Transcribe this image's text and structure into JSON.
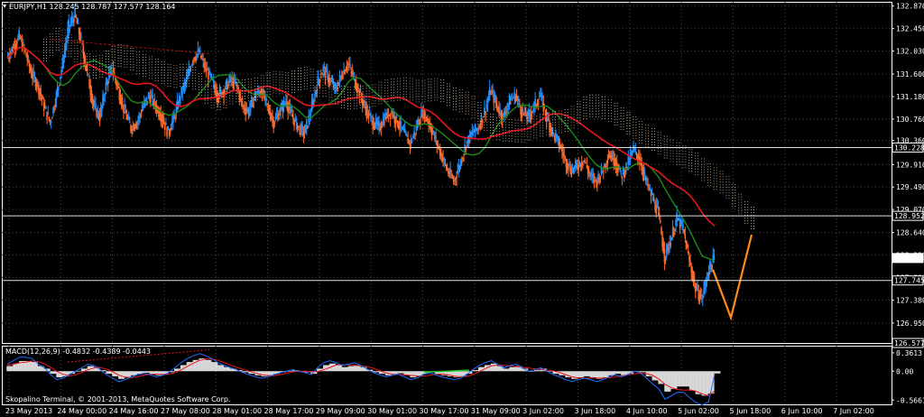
{
  "chart_data": [
    {
      "type": "candlestick",
      "symbol_header": "EURJPY,H1  128.245 128.787 127.577 128.164",
      "y_ticks": [
        "132.870",
        "132.450",
        "132.030",
        "131.600",
        "131.180",
        "130.760",
        "130.360",
        "129.910",
        "129.490",
        "129.070",
        "128.640",
        "128.220",
        "127.800",
        "127.380",
        "126.950"
      ],
      "y_tick_values": [
        132.87,
        132.45,
        132.03,
        131.6,
        131.18,
        130.76,
        130.36,
        129.91,
        129.49,
        129.07,
        128.64,
        128.22,
        127.8,
        127.38,
        126.95
      ],
      "ylim": [
        126.577,
        132.95
      ],
      "price_labels": [
        {
          "text": "130.228",
          "value": 130.228,
          "style": "box"
        },
        {
          "text": "128.952",
          "value": 128.952,
          "style": "box"
        },
        {
          "text": "128.164",
          "value": 128.164,
          "style": "filled"
        },
        {
          "text": "127.745",
          "value": 127.745,
          "style": "box"
        },
        {
          "text": "126.577",
          "value": 126.577,
          "style": "box"
        }
      ],
      "horizontal_lines": [
        130.228,
        128.952,
        127.745
      ],
      "x_labels": [
        "23 May 2013",
        "24 May 00:00",
        "24 May 16:00",
        "27 May 08:00",
        "28 May 01:00",
        "28 May 17:00",
        "29 May 09:00",
        "30 May 01:00",
        "30 May 17:00",
        "31 May 09:00",
        "3 Jun 02:00",
        "3 Jun 18:00",
        "4 Jun 10:00",
        "5 Jun 02:00",
        "5 Jun 18:00",
        "6 Jun 10:00",
        "7 Jun 02:00"
      ],
      "close_path": [
        131.9,
        132.1,
        132.3,
        132.0,
        131.6,
        131.4,
        131.0,
        130.7,
        131.2,
        131.8,
        132.5,
        132.7,
        132.2,
        131.6,
        131.0,
        130.8,
        131.4,
        131.7,
        131.3,
        130.9,
        130.6,
        130.7,
        131.0,
        131.2,
        131.0,
        130.8,
        130.5,
        130.8,
        131.2,
        131.5,
        131.9,
        132.0,
        131.7,
        131.5,
        131.2,
        131.3,
        131.5,
        131.4,
        131.0,
        130.9,
        131.2,
        131.3,
        131.0,
        130.7,
        130.9,
        131.1,
        130.8,
        130.6,
        130.5,
        130.9,
        131.4,
        131.7,
        131.5,
        131.3,
        131.6,
        131.8,
        131.5,
        131.2,
        130.9,
        130.7,
        130.6,
        130.8,
        130.9,
        130.7,
        130.5,
        130.3,
        130.6,
        130.9,
        130.7,
        130.4,
        130.1,
        129.8,
        129.6,
        129.9,
        130.3,
        130.5,
        130.6,
        130.9,
        131.3,
        131.0,
        130.8,
        131.1,
        131.2,
        130.9,
        130.8,
        131.0,
        131.2,
        130.8,
        130.5,
        130.3,
        130.0,
        129.8,
        129.9,
        130.0,
        129.7,
        129.6,
        129.8,
        130.1,
        130.0,
        129.7,
        129.9,
        130.2,
        130.0,
        129.6,
        129.3,
        129.0,
        128.2,
        128.5,
        128.9,
        128.7,
        128.1,
        127.6,
        127.4,
        127.9,
        128.164
      ]
    },
    {
      "type": "histogram",
      "title": "MACD(12,26,9) -0.4832 -0.4389 -0.0443",
      "y_ticks": [
        "0.3613",
        "0.00",
        "-0.5661"
      ],
      "y_tick_values": [
        0.3613,
        0.0,
        -0.5661
      ],
      "ylim": [
        -0.65,
        0.5
      ],
      "footer": "Skopalino Terminal, © 2001-2013, MetaQuotes Software Corp.",
      "histogram": [
        0.1,
        0.15,
        0.2,
        0.2,
        0.18,
        0.1,
        0.05,
        -0.05,
        -0.12,
        -0.1,
        -0.05,
        0.0,
        0.05,
        0.1,
        0.08,
        0.02,
        -0.05,
        -0.1,
        -0.15,
        -0.12,
        -0.08,
        -0.05,
        -0.03,
        -0.05,
        -0.08,
        -0.06,
        -0.02,
        0.05,
        0.12,
        0.18,
        0.22,
        0.25,
        0.22,
        0.18,
        0.12,
        0.08,
        0.05,
        0.02,
        -0.02,
        -0.05,
        -0.08,
        -0.1,
        -0.08,
        -0.05,
        -0.02,
        0.0,
        0.02,
        0.0,
        -0.02,
        -0.05,
        0.05,
        0.12,
        0.15,
        0.12,
        0.08,
        0.1,
        0.12,
        0.08,
        0.03,
        -0.02,
        -0.05,
        -0.08,
        -0.06,
        -0.04,
        -0.08,
        -0.12,
        -0.1,
        -0.05,
        -0.02,
        -0.05,
        -0.08,
        -0.1,
        -0.12,
        -0.1,
        -0.05,
        0.02,
        0.08,
        0.12,
        0.15,
        0.1,
        0.05,
        0.08,
        0.1,
        0.05,
        0.0,
        0.02,
        0.05,
        0.0,
        -0.05,
        -0.08,
        -0.12,
        -0.15,
        -0.12,
        -0.1,
        -0.12,
        -0.15,
        -0.12,
        -0.08,
        -0.05,
        -0.08,
        -0.05,
        0.0,
        -0.02,
        -0.1,
        -0.18,
        -0.25,
        -0.4,
        -0.35,
        -0.3,
        -0.3,
        -0.38,
        -0.45,
        -0.48,
        -0.44,
        -0.0443
      ]
    }
  ]
}
